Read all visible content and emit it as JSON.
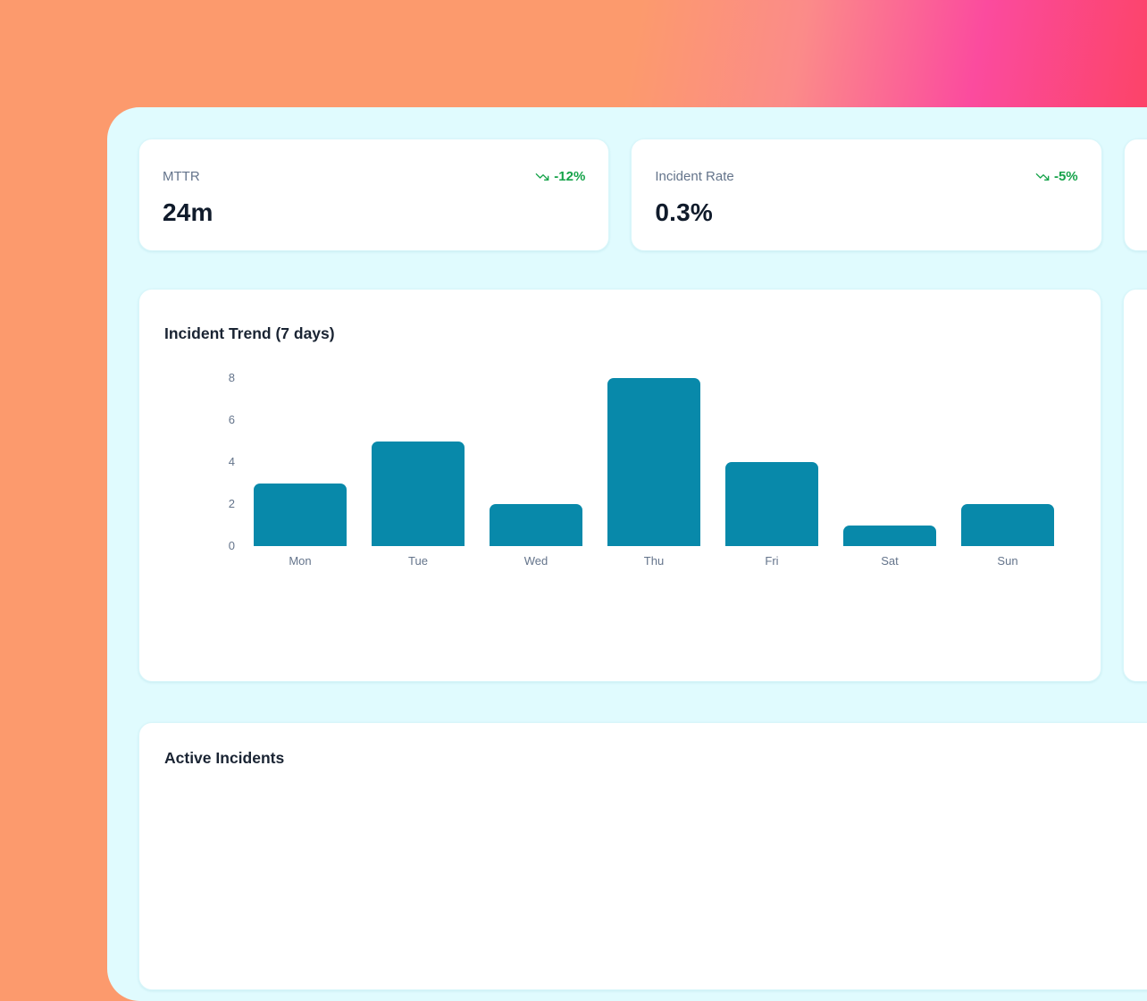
{
  "stats": [
    {
      "label": "MTTR",
      "value": "24m",
      "trend": "-12%",
      "trend_direction": "down"
    },
    {
      "label": "Incident Rate",
      "value": "0.3%",
      "trend": "-5%",
      "trend_direction": "down"
    }
  ],
  "chart_card": {
    "title": "Incident Trend (7 days)"
  },
  "chart_data": {
    "type": "bar",
    "title": "Incident Trend (7 days)",
    "categories": [
      "Mon",
      "Tue",
      "Wed",
      "Thu",
      "Fri",
      "Sat",
      "Sun"
    ],
    "values": [
      3,
      5,
      2,
      8,
      4,
      1,
      2
    ],
    "xlabel": "",
    "ylabel": "",
    "ylim": [
      0,
      8
    ],
    "yticks": [
      0,
      2,
      4,
      6,
      8
    ],
    "grid": false,
    "legend": false,
    "bar_color": "#0889aa"
  },
  "incidents_card": {
    "title": "Active Incidents"
  },
  "colors": {
    "bar": "#0889aa",
    "trend_green": "#16a34a",
    "panel_bg": "#e0fbfe",
    "bg_orange": "#fc9a6d",
    "bg_pink": "#fb4b9e",
    "bg_red": "#fc4154"
  },
  "icons": {
    "stat_trend": "trending-down"
  }
}
